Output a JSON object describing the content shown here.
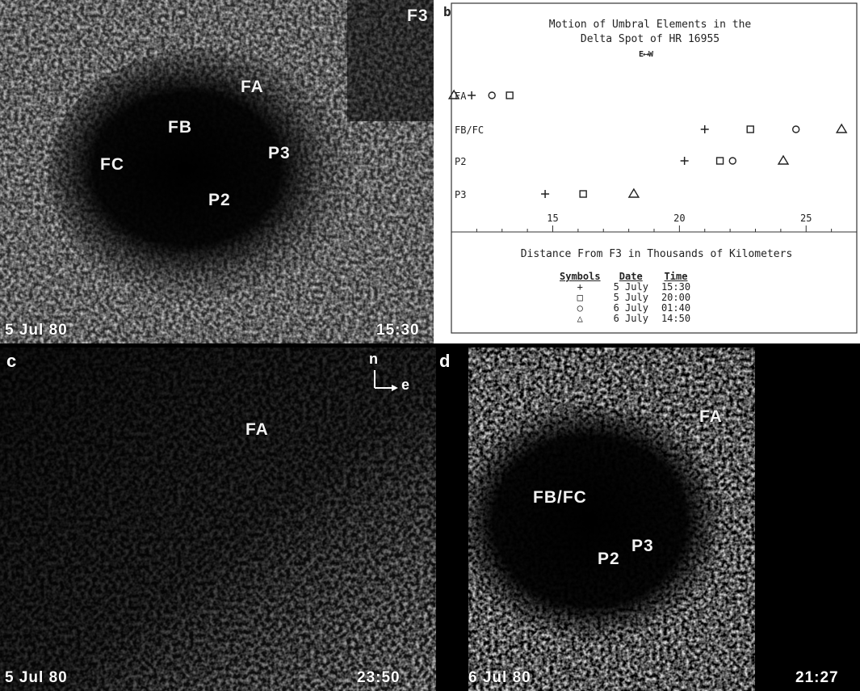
{
  "panel_a": {
    "panel_letter": "",
    "labels": {
      "f3": "F3",
      "fa": "FA",
      "fb": "FB",
      "fc": "FC",
      "p3": "P3",
      "p2": "P2"
    },
    "date_stamp": "5 Jul 80",
    "time_stamp": "15:30"
  },
  "panel_b": {
    "panel_letter": "b",
    "legend_headers": [
      "Symbols",
      "Date",
      "Time"
    ],
    "legend_rows": [
      {
        "symbol": "+",
        "date": "5 July",
        "time": "15:30"
      },
      {
        "symbol": "□",
        "date": "5 July",
        "time": "20:00"
      },
      {
        "symbol": "○",
        "date": "6 July",
        "time": "01:40"
      },
      {
        "symbol": "△",
        "date": "6 July",
        "time": "14:50"
      }
    ]
  },
  "panel_c": {
    "panel_letter": "c",
    "fa_label": "FA",
    "compass": {
      "north": "n",
      "east": "e"
    },
    "date_stamp": "5 Jul 80",
    "time_stamp": "23:50"
  },
  "panel_d": {
    "panel_letter": "d",
    "labels": {
      "fa": "FA",
      "fbfc": "FB/FC",
      "p3": "P3",
      "p2": "P2"
    },
    "date_stamp": "6 Jul 80",
    "time_stamp": "21:27"
  },
  "chart_data": {
    "type": "scatter",
    "title": "Motion of Umbral Elements in the Delta Spot of HR 16955",
    "direction_label": "E⟷W",
    "xlabel": "Distance From F3 in Thousands of Kilometers",
    "ylabel": "",
    "xlim": [
      11,
      27
    ],
    "x_ticks": [
      15,
      20,
      25
    ],
    "categories": [
      "FA",
      "FB/FC",
      "P2",
      "P3"
    ],
    "series": [
      {
        "name": "5 July 15:30",
        "marker": "+",
        "values": [
          11.8,
          21.0,
          20.2,
          14.7
        ]
      },
      {
        "name": "5 July 20:00",
        "marker": "□",
        "values": [
          13.3,
          22.8,
          21.6,
          16.2
        ]
      },
      {
        "name": "6 July 01:40",
        "marker": "○",
        "values": [
          12.6,
          24.6,
          22.1,
          null
        ]
      },
      {
        "name": "6 July 14:50",
        "marker": "△",
        "values": [
          11.1,
          26.4,
          24.1,
          18.2
        ]
      }
    ],
    "grid": false,
    "legend_position": "bottom"
  }
}
